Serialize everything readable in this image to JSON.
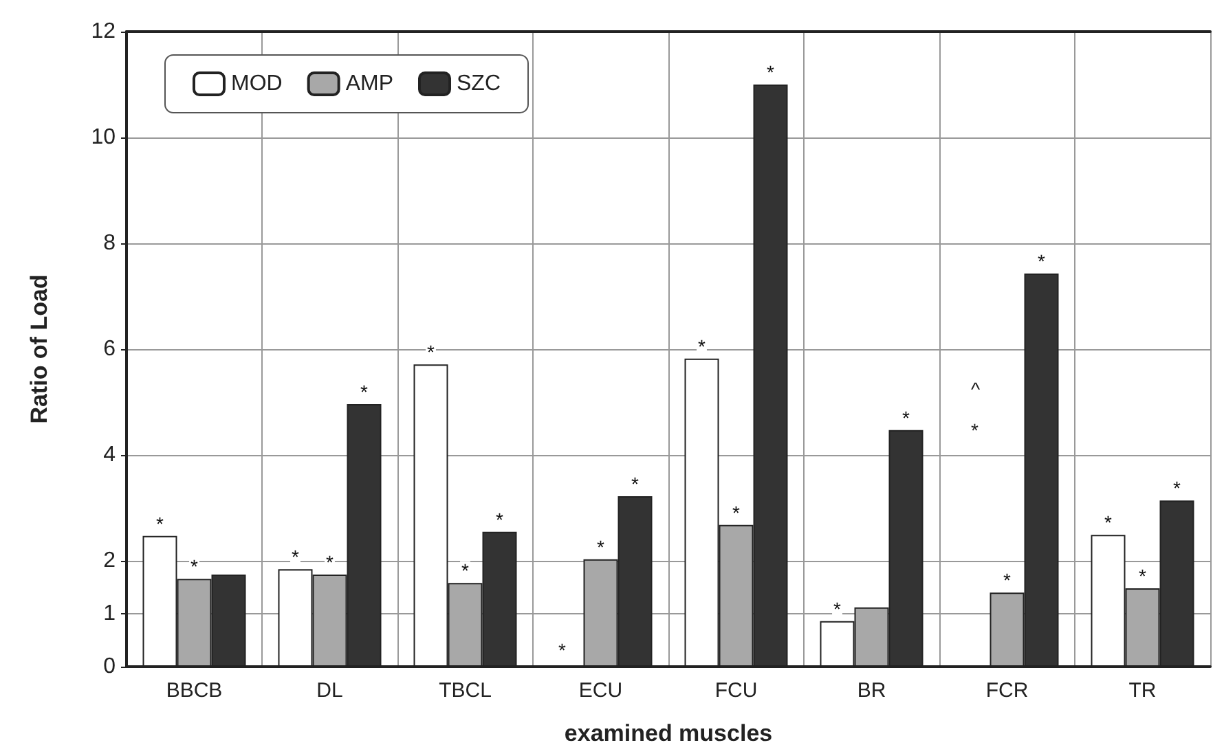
{
  "chart_data": {
    "type": "bar",
    "xlabel": "examined muscles",
    "ylabel": "Ratio of Load",
    "categories": [
      "BBCB",
      "DL",
      "TBCL",
      "ECU",
      "FCU",
      "BR",
      "FCR",
      "TR"
    ],
    "series": [
      {
        "name": "MOD",
        "color": "#ffffff",
        "values": [
          2.47,
          1.84,
          5.71,
          null,
          5.82,
          0.86,
          null,
          2.49
        ],
        "value_labels": [
          "*",
          "*",
          "*",
          null,
          "*",
          "*",
          null,
          "*"
        ]
      },
      {
        "name": "AMP",
        "color": "#a8a8a8",
        "values": [
          1.66,
          1.74,
          1.58,
          2.03,
          2.68,
          1.12,
          1.4,
          1.48
        ],
        "value_labels": [
          "*",
          "*",
          "*",
          "*",
          "*",
          null,
          "*",
          "*"
        ]
      },
      {
        "name": "SZC",
        "color": "#333333",
        "values": [
          1.74,
          4.96,
          2.55,
          3.22,
          11.0,
          4.47,
          7.43,
          3.14
        ],
        "value_labels": [
          null,
          "*",
          "*",
          "*",
          "*",
          "*",
          "*",
          "*"
        ]
      }
    ],
    "annotations": [
      "*",
      "^",
      "*"
    ],
    "ylim": [
      0,
      12
    ],
    "yticks": [
      0,
      1,
      2,
      4,
      6,
      8,
      10,
      12
    ],
    "grid": true,
    "legend": "top left"
  }
}
